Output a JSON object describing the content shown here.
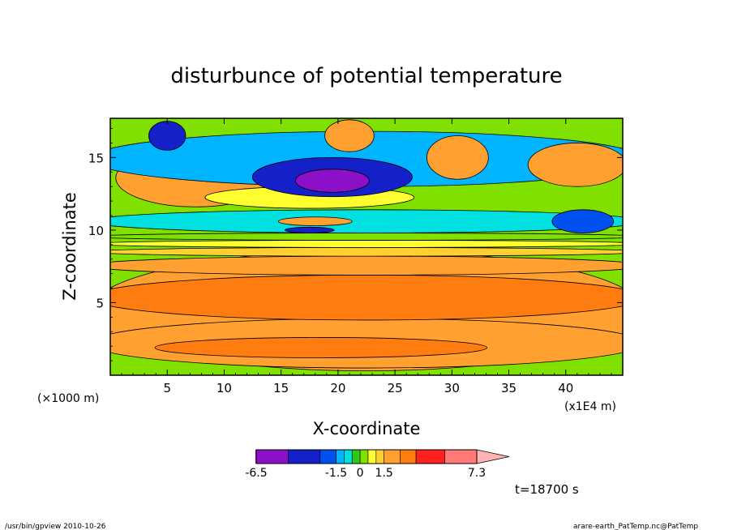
{
  "chart_data": {
    "type": "heatmap",
    "title": "disturbunce of potential temperature",
    "xlabel": "X-coordinate",
    "ylabel": "Z-coordinate",
    "x_unit": "(×1000 m)",
    "x_scale_note": "(x1E4 m)",
    "xlim": [
      0,
      45
    ],
    "ylim": [
      0,
      17.7
    ],
    "x_ticks": [
      5,
      10,
      15,
      20,
      25,
      30,
      35,
      40
    ],
    "x_tick_labels": [
      "5",
      "10",
      "15",
      "20",
      "25",
      "30",
      "35",
      "40"
    ],
    "y_ticks": [
      5,
      10,
      15
    ],
    "y_tick_labels": [
      "5",
      "10",
      "15"
    ],
    "colorbar": {
      "levels": [
        -6.5,
        -4.5,
        -2.5,
        -1.5,
        -1.0,
        -0.5,
        0,
        0.5,
        1.0,
        1.5,
        2.5,
        3.5,
        5.3,
        7.3
      ],
      "labels": [
        "-6.5",
        "-1.5",
        "0",
        "1.5",
        "7.3"
      ],
      "colors": [
        "#e000b4",
        "#8c10c8",
        "#1420c8",
        "#0050f0",
        "#00b4ff",
        "#00e0e0",
        "#30c818",
        "#80e000",
        "#ffff30",
        "#ffd030",
        "#ffa030",
        "#ff7c10",
        "#ff2020",
        "#ff7a78",
        "#ffb4b4"
      ]
    },
    "regions": [
      {
        "x": [
          0,
          45
        ],
        "z": [
          0,
          17.7
        ],
        "value": 0.3
      },
      {
        "x": [
          0,
          45
        ],
        "z": [
          0.3,
          8.6
        ],
        "value": 2.0
      },
      {
        "x": [
          0,
          45
        ],
        "z": [
          0.5,
          3.9
        ],
        "value": 2.2
      },
      {
        "x": [
          0,
          45
        ],
        "z": [
          3.8,
          6.9
        ],
        "value": 3.2
      },
      {
        "x": [
          0,
          45
        ],
        "z": [
          6.9,
          8.2
        ],
        "value": 1.6
      },
      {
        "x": [
          0,
          45
        ],
        "z": [
          8.2,
          8.8
        ],
        "value": 1.2
      },
      {
        "x": [
          0,
          45
        ],
        "z": [
          8.8,
          9.3
        ],
        "value": 0.8
      },
      {
        "x": [
          0,
          45
        ],
        "z": [
          9.3,
          9.8
        ],
        "value": 0.2
      },
      {
        "x": [
          0,
          45
        ],
        "z": [
          9.8,
          11.4
        ],
        "value": -0.6
      },
      {
        "x": [
          5,
          32
        ],
        "z": [
          1.2,
          2.6
        ],
        "value": 2.8
      },
      {
        "x": [
          1,
          14
        ],
        "z": [
          11.6,
          15.6
        ],
        "value": 1.8
      },
      {
        "x": [
          9,
          26
        ],
        "z": [
          11.5,
          13.0
        ],
        "value": 0.8
      },
      {
        "x": [
          15,
          21
        ],
        "z": [
          10.3,
          10.9
        ],
        "value": 1.8
      },
      {
        "x": [
          15.5,
          19.5
        ],
        "z": [
          9.8,
          10.2
        ],
        "value": -4.0
      },
      {
        "x": [
          0,
          45
        ],
        "z": [
          13.0,
          16.8
        ],
        "value": -1.5
      },
      {
        "x": [
          13,
          26
        ],
        "z": [
          12.3,
          15.0
        ],
        "value": -4.0
      },
      {
        "x": [
          16.5,
          22.5
        ],
        "z": [
          12.6,
          14.2
        ],
        "value": -6.0
      },
      {
        "x": [
          19,
          23
        ],
        "z": [
          15.4,
          17.6
        ],
        "value": 2.2
      },
      {
        "x": [
          28,
          33
        ],
        "z": [
          13.5,
          16.5
        ],
        "value": 1.8
      },
      {
        "x": [
          37,
          45
        ],
        "z": [
          13.0,
          16.0
        ],
        "value": 1.8
      },
      {
        "x": [
          39,
          44
        ],
        "z": [
          9.8,
          11.4
        ],
        "value": -2.0
      },
      {
        "x": [
          3.5,
          6.5
        ],
        "z": [
          15.5,
          17.5
        ],
        "value": -4.0
      }
    ]
  },
  "annotations": {
    "time": "t=18700 s",
    "footer_left": "/usr/bin/gpview  2010-10-26",
    "footer_right": "arare-earth_PatTemp.nc@PatTemp"
  }
}
